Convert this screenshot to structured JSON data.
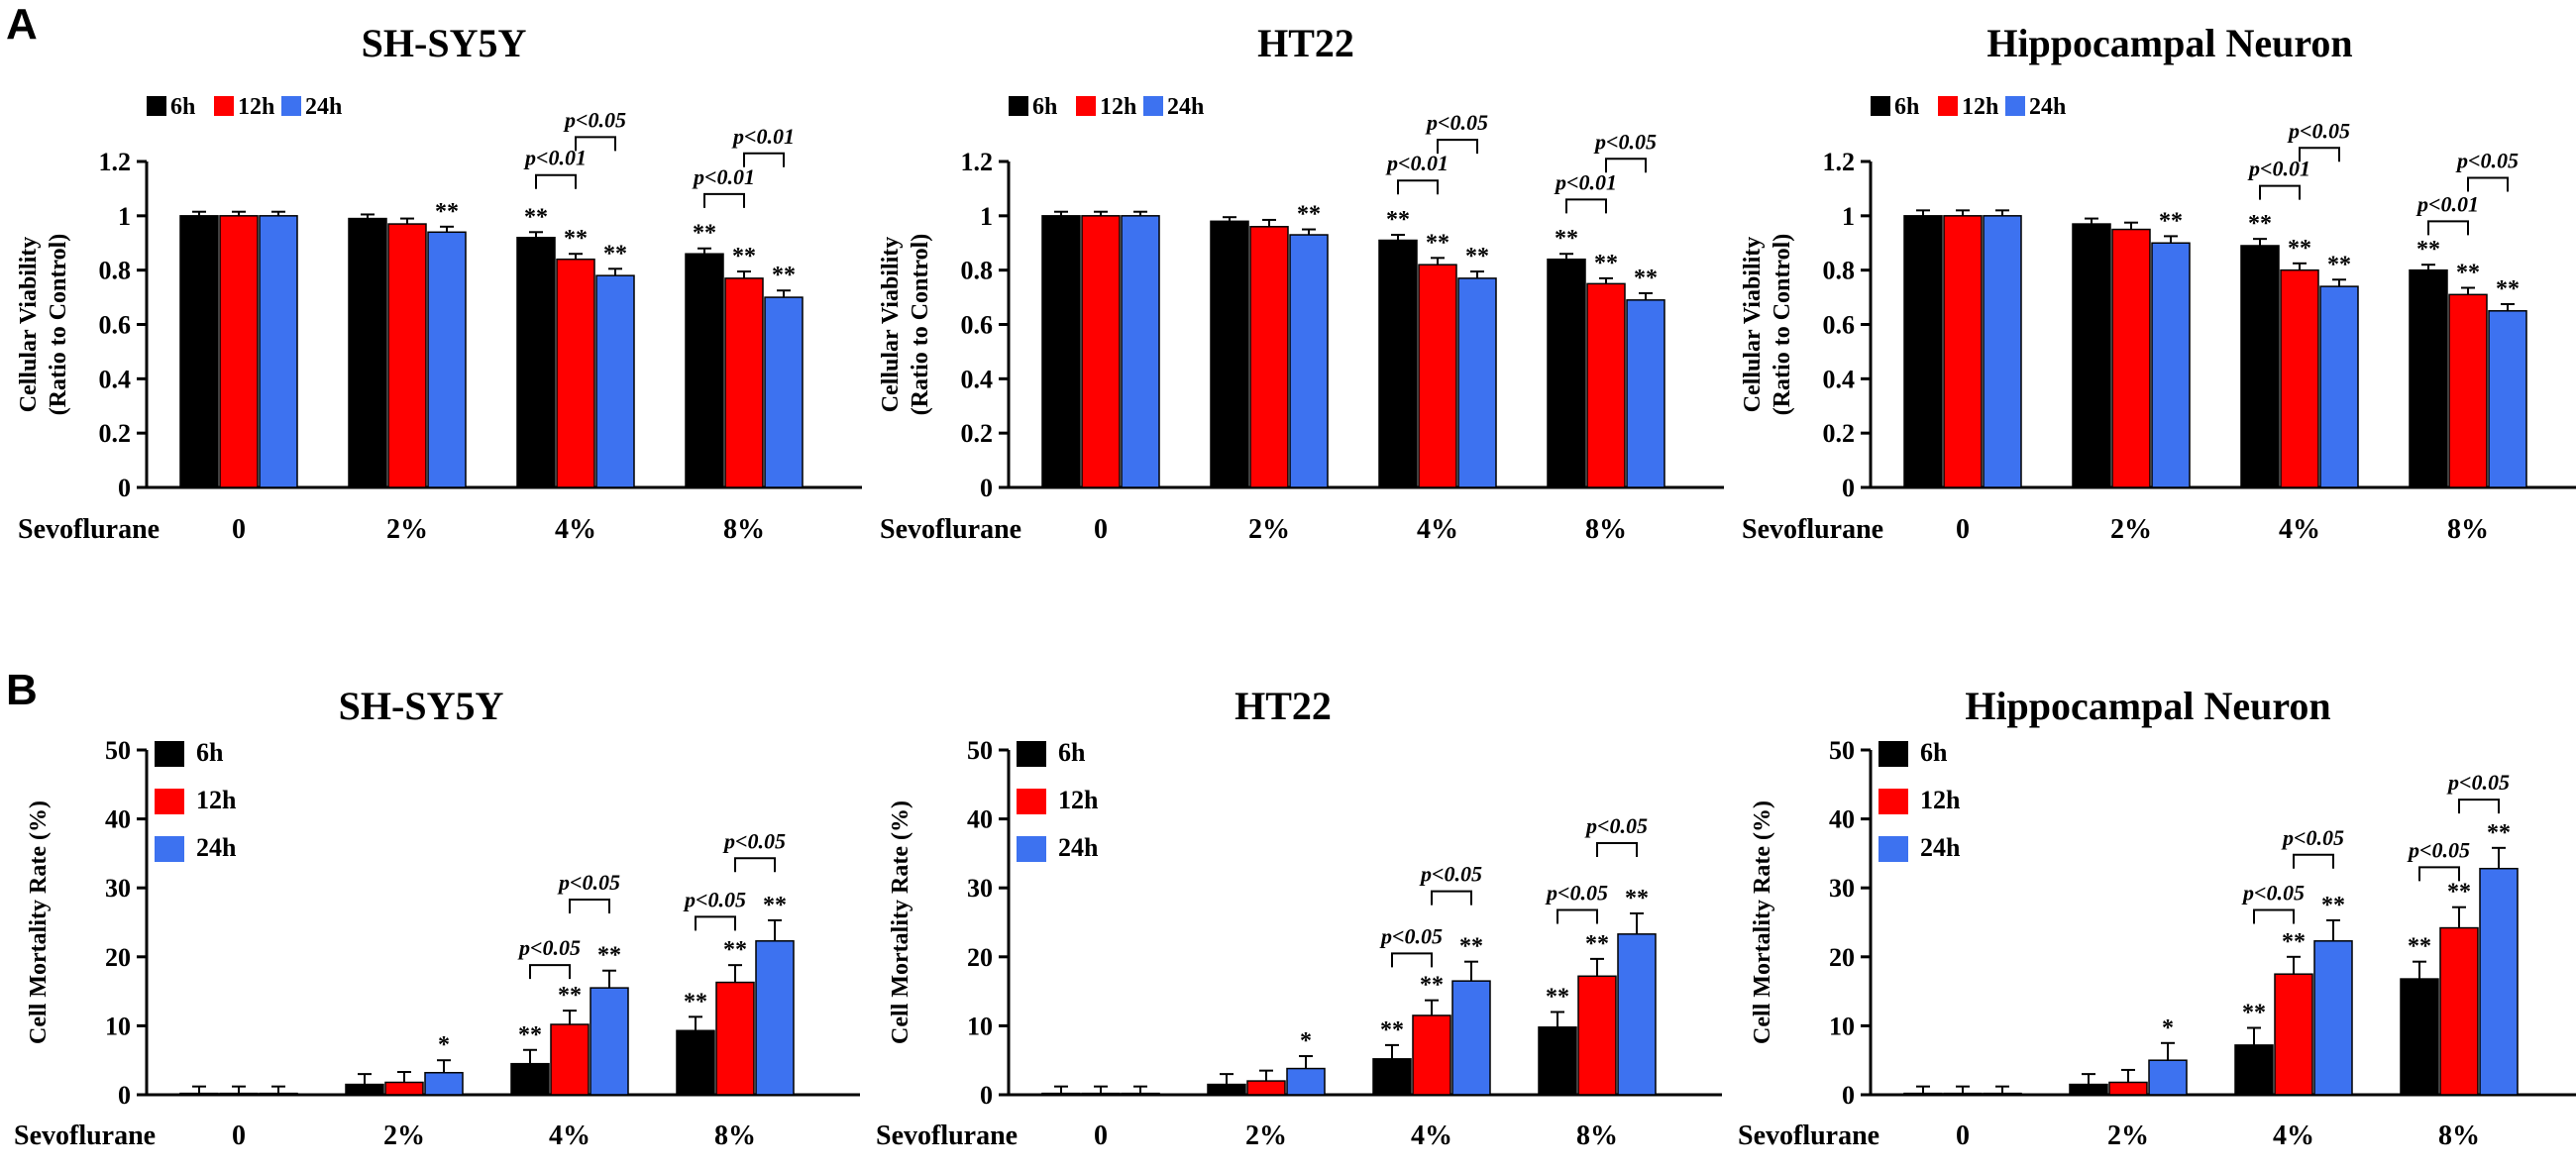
{
  "panel_labels": {
    "a": "A",
    "b": "B"
  },
  "colors": {
    "6h": "#000000",
    "12h": "#ff0000",
    "24h": "#3d72f0",
    "stars_b": "#555555"
  },
  "chart_data": [
    {
      "type": "bar",
      "panel": "A",
      "title": "SH-SY5Y",
      "ylabel": "Cellular Viability (Ratio to Control)",
      "ylabel_lines": [
        "Cellular Viability",
        "(Ratio to Control)"
      ],
      "xlabel": "Sevoflurane",
      "categories": [
        "0",
        "2%",
        "4%",
        "8%"
      ],
      "ylim": [
        0,
        1.2
      ],
      "yticks": [
        "0",
        "0.2",
        "0.4",
        "0.6",
        "0.8",
        "1",
        "1.2"
      ],
      "legend_layout": "row",
      "series": [
        {
          "name": "6h",
          "values": [
            1.0,
            0.99,
            0.92,
            0.86
          ],
          "errors": [
            0.015,
            0.015,
            0.02,
            0.02
          ]
        },
        {
          "name": "12h",
          "values": [
            1.0,
            0.97,
            0.84,
            0.77
          ],
          "errors": [
            0.015,
            0.02,
            0.02,
            0.025
          ]
        },
        {
          "name": "24h",
          "values": [
            1.0,
            0.94,
            0.78,
            0.7
          ],
          "errors": [
            0.015,
            0.02,
            0.025,
            0.025
          ]
        }
      ],
      "significance": [
        {
          "category": 1,
          "series": 2,
          "label": "**"
        },
        {
          "category": 2,
          "series": 0,
          "label": "**"
        },
        {
          "category": 2,
          "series": 1,
          "label": "**"
        },
        {
          "category": 2,
          "series": 2,
          "label": "**"
        },
        {
          "category": 3,
          "series": 0,
          "label": "**"
        },
        {
          "category": 3,
          "series": 1,
          "label": "**"
        },
        {
          "category": 3,
          "series": 2,
          "label": "**"
        }
      ],
      "comparisons": [
        {
          "category": 2,
          "from": 0,
          "to": 1,
          "label": "p<0.01",
          "level": 1.15
        },
        {
          "category": 2,
          "from": 1,
          "to": 2,
          "label": "p<0.05",
          "level": 1.29
        },
        {
          "category": 3,
          "from": 0,
          "to": 1,
          "label": "p<0.01",
          "level": 1.08
        },
        {
          "category": 3,
          "from": 1,
          "to": 2,
          "label": "p<0.01",
          "level": 1.23
        }
      ]
    },
    {
      "type": "bar",
      "panel": "A",
      "title": "HT22",
      "ylabel": "Cellular Viability (Ratio to Control)",
      "ylabel_lines": [
        "Cellular Viability",
        "(Ratio to Control)"
      ],
      "xlabel": "Sevoflurane",
      "categories": [
        "0",
        "2%",
        "4%",
        "8%"
      ],
      "ylim": [
        0,
        1.2
      ],
      "yticks": [
        "0",
        "0.2",
        "0.4",
        "0.6",
        "0.8",
        "1",
        "1.2"
      ],
      "legend_layout": "row",
      "series": [
        {
          "name": "6h",
          "values": [
            1.0,
            0.98,
            0.91,
            0.84
          ],
          "errors": [
            0.015,
            0.015,
            0.02,
            0.02
          ]
        },
        {
          "name": "12h",
          "values": [
            1.0,
            0.96,
            0.82,
            0.75
          ],
          "errors": [
            0.015,
            0.025,
            0.025,
            0.02
          ]
        },
        {
          "name": "24h",
          "values": [
            1.0,
            0.93,
            0.77,
            0.69
          ],
          "errors": [
            0.015,
            0.02,
            0.025,
            0.025
          ]
        }
      ],
      "significance": [
        {
          "category": 1,
          "series": 2,
          "label": "**"
        },
        {
          "category": 2,
          "series": 0,
          "label": "**"
        },
        {
          "category": 2,
          "series": 1,
          "label": "**"
        },
        {
          "category": 2,
          "series": 2,
          "label": "**"
        },
        {
          "category": 3,
          "series": 0,
          "label": "**"
        },
        {
          "category": 3,
          "series": 1,
          "label": "**"
        },
        {
          "category": 3,
          "series": 2,
          "label": "**"
        }
      ],
      "comparisons": [
        {
          "category": 2,
          "from": 0,
          "to": 1,
          "label": "p<0.01",
          "level": 1.13
        },
        {
          "category": 2,
          "from": 1,
          "to": 2,
          "label": "p<0.05",
          "level": 1.28
        },
        {
          "category": 3,
          "from": 0,
          "to": 1,
          "label": "p<0.01",
          "level": 1.06
        },
        {
          "category": 3,
          "from": 1,
          "to": 2,
          "label": "p<0.05",
          "level": 1.21
        }
      ]
    },
    {
      "type": "bar",
      "panel": "A",
      "title": "Hippocampal Neuron",
      "ylabel": "Cellular Viability (Ratio to Control)",
      "ylabel_lines": [
        "Cellular Viability",
        "(Ratio to Control)"
      ],
      "xlabel": "Sevoflurane",
      "categories": [
        "0",
        "2%",
        "4%",
        "8%"
      ],
      "ylim": [
        0,
        1.2
      ],
      "yticks": [
        "0",
        "0.2",
        "0.4",
        "0.6",
        "0.8",
        "1",
        "1.2"
      ],
      "legend_layout": "row",
      "series": [
        {
          "name": "6h",
          "values": [
            1.0,
            0.97,
            0.89,
            0.8
          ],
          "errors": [
            0.02,
            0.02,
            0.025,
            0.02
          ]
        },
        {
          "name": "12h",
          "values": [
            1.0,
            0.95,
            0.8,
            0.71
          ],
          "errors": [
            0.02,
            0.025,
            0.025,
            0.025
          ]
        },
        {
          "name": "24h",
          "values": [
            1.0,
            0.9,
            0.74,
            0.65
          ],
          "errors": [
            0.02,
            0.025,
            0.025,
            0.025
          ]
        }
      ],
      "significance": [
        {
          "category": 1,
          "series": 2,
          "label": "**"
        },
        {
          "category": 2,
          "series": 0,
          "label": "**"
        },
        {
          "category": 2,
          "series": 1,
          "label": "**"
        },
        {
          "category": 2,
          "series": 2,
          "label": "**"
        },
        {
          "category": 3,
          "series": 0,
          "label": "**"
        },
        {
          "category": 3,
          "series": 1,
          "label": "**"
        },
        {
          "category": 3,
          "series": 2,
          "label": "**"
        }
      ],
      "comparisons": [
        {
          "category": 2,
          "from": 0,
          "to": 1,
          "label": "p<0.01",
          "level": 1.11
        },
        {
          "category": 2,
          "from": 1,
          "to": 2,
          "label": "p<0.05",
          "level": 1.25
        },
        {
          "category": 3,
          "from": 0,
          "to": 1,
          "label": "p<0.01",
          "level": 0.98
        },
        {
          "category": 3,
          "from": 1,
          "to": 2,
          "label": "p<0.05",
          "level": 1.14
        }
      ]
    },
    {
      "type": "bar",
      "panel": "B",
      "title": "SH-SY5Y",
      "ylabel": "Cell Mortality Rate (%)",
      "ylabel_lines": [
        "Cell Mortality Rate (%)"
      ],
      "xlabel": "Sevoflurane",
      "categories": [
        "0",
        "2%",
        "4%",
        "8%"
      ],
      "ylim": [
        0,
        50
      ],
      "yticks": [
        "0",
        "10",
        "20",
        "30",
        "40",
        "50"
      ],
      "legend_layout": "column",
      "series": [
        {
          "name": "6h",
          "values": [
            0.2,
            1.5,
            4.5,
            9.3
          ],
          "errors": [
            1.0,
            1.5,
            2.0,
            2.0
          ]
        },
        {
          "name": "12h",
          "values": [
            0.2,
            1.8,
            10.2,
            16.3
          ],
          "errors": [
            1.0,
            1.5,
            2.0,
            2.5
          ]
        },
        {
          "name": "24h",
          "values": [
            0.2,
            3.2,
            15.5,
            22.3
          ],
          "errors": [
            1.0,
            1.8,
            2.5,
            3.0
          ]
        }
      ],
      "significance": [
        {
          "category": 1,
          "series": 2,
          "label": "*"
        },
        {
          "category": 2,
          "series": 0,
          "label": "**"
        },
        {
          "category": 2,
          "series": 1,
          "label": "**"
        },
        {
          "category": 2,
          "series": 2,
          "label": "**"
        },
        {
          "category": 3,
          "series": 0,
          "label": "**"
        },
        {
          "category": 3,
          "series": 1,
          "label": "**"
        },
        {
          "category": 3,
          "series": 2,
          "label": "**"
        }
      ],
      "comparisons": [
        {
          "category": 2,
          "from": 0,
          "to": 1,
          "label": "p<0.05",
          "level": 18.8
        },
        {
          "category": 2,
          "from": 1,
          "to": 2,
          "label": "p<0.05",
          "level": 28.3
        },
        {
          "category": 3,
          "from": 0,
          "to": 1,
          "label": "p<0.05",
          "level": 25.8
        },
        {
          "category": 3,
          "from": 1,
          "to": 2,
          "label": "p<0.05",
          "level": 34.3
        }
      ]
    },
    {
      "type": "bar",
      "panel": "B",
      "title": "HT22",
      "ylabel": "Cell Mortality Rate (%)",
      "ylabel_lines": [
        "Cell Mortality Rate (%)"
      ],
      "xlabel": "Sevoflurane",
      "categories": [
        "0",
        "2%",
        "4%",
        "8%"
      ],
      "ylim": [
        0,
        50
      ],
      "yticks": [
        "0",
        "10",
        "20",
        "30",
        "40",
        "50"
      ],
      "legend_layout": "column",
      "series": [
        {
          "name": "6h",
          "values": [
            0.2,
            1.5,
            5.2,
            9.8
          ],
          "errors": [
            1.0,
            1.5,
            2.0,
            2.2
          ]
        },
        {
          "name": "12h",
          "values": [
            0.2,
            2.0,
            11.5,
            17.2
          ],
          "errors": [
            1.0,
            1.5,
            2.2,
            2.5
          ]
        },
        {
          "name": "24h",
          "values": [
            0.2,
            3.8,
            16.5,
            23.3
          ],
          "errors": [
            1.0,
            1.8,
            2.8,
            3.0
          ]
        }
      ],
      "significance": [
        {
          "category": 1,
          "series": 2,
          "label": "*"
        },
        {
          "category": 2,
          "series": 0,
          "label": "**"
        },
        {
          "category": 2,
          "series": 1,
          "label": "**"
        },
        {
          "category": 2,
          "series": 2,
          "label": "**"
        },
        {
          "category": 3,
          "series": 0,
          "label": "**"
        },
        {
          "category": 3,
          "series": 1,
          "label": "**"
        },
        {
          "category": 3,
          "series": 2,
          "label": "**"
        }
      ],
      "comparisons": [
        {
          "category": 2,
          "from": 0,
          "to": 1,
          "label": "p<0.05",
          "level": 20.5
        },
        {
          "category": 2,
          "from": 1,
          "to": 2,
          "label": "p<0.05",
          "level": 29.5
        },
        {
          "category": 3,
          "from": 0,
          "to": 1,
          "label": "p<0.05",
          "level": 26.8
        },
        {
          "category": 3,
          "from": 1,
          "to": 2,
          "label": "p<0.05",
          "level": 36.5
        }
      ]
    },
    {
      "type": "bar",
      "panel": "B",
      "title": "Hippocampal Neuron",
      "ylabel": "Cell Mortality Rate (%)",
      "ylabel_lines": [
        "Cell Mortality Rate (%)"
      ],
      "xlabel": "Sevoflurane",
      "categories": [
        "0",
        "2%",
        "4%",
        "8%"
      ],
      "ylim": [
        0,
        50
      ],
      "yticks": [
        "0",
        "10",
        "20",
        "30",
        "40",
        "50"
      ],
      "legend_layout": "column",
      "series": [
        {
          "name": "6h",
          "values": [
            0.2,
            1.5,
            7.2,
            16.8
          ],
          "errors": [
            1.0,
            1.5,
            2.5,
            2.5
          ]
        },
        {
          "name": "12h",
          "values": [
            0.2,
            1.8,
            17.5,
            24.2
          ],
          "errors": [
            1.0,
            1.8,
            2.5,
            3.0
          ]
        },
        {
          "name": "24h",
          "values": [
            0.2,
            5.0,
            22.3,
            32.8
          ],
          "errors": [
            1.0,
            2.5,
            3.0,
            3.0
          ]
        }
      ],
      "significance": [
        {
          "category": 1,
          "series": 2,
          "label": "*"
        },
        {
          "category": 2,
          "series": 0,
          "label": "**"
        },
        {
          "category": 2,
          "series": 1,
          "label": "**"
        },
        {
          "category": 2,
          "series": 2,
          "label": "**"
        },
        {
          "category": 3,
          "series": 0,
          "label": "**"
        },
        {
          "category": 3,
          "series": 1,
          "label": "**"
        },
        {
          "category": 3,
          "series": 2,
          "label": "**"
        }
      ],
      "comparisons": [
        {
          "category": 2,
          "from": 0,
          "to": 1,
          "label": "p<0.05",
          "level": 26.8
        },
        {
          "category": 2,
          "from": 1,
          "to": 2,
          "label": "p<0.05",
          "level": 34.8
        },
        {
          "category": 3,
          "from": 0,
          "to": 1,
          "label": "p<0.05",
          "level": 33.0
        },
        {
          "category": 3,
          "from": 1,
          "to": 2,
          "label": "p<0.05",
          "level": 42.8
        }
      ]
    }
  ]
}
